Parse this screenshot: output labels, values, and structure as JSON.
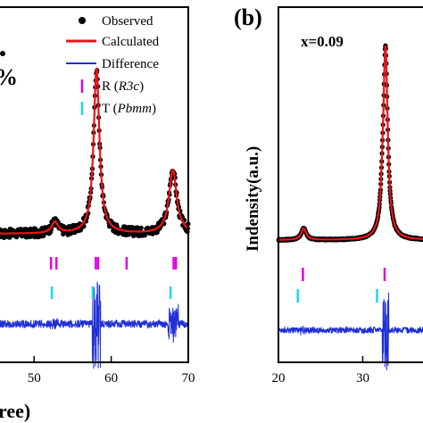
{
  "chart_data": [
    {
      "panel": "a",
      "type": "scatter",
      "title": "",
      "partial_labels": [
        "%"
      ],
      "xlabel": "ree)",
      "ylabel": "",
      "xlim": [
        45,
        70
      ],
      "xticks": [
        "50",
        "60",
        "70"
      ],
      "legend": {
        "placement": "top-right",
        "entries": [
          {
            "label": "Observed",
            "symbol": "dot",
            "color": "#000000"
          },
          {
            "label": "Calculated",
            "symbol": "line",
            "color": "#e8141a"
          },
          {
            "label": "Difference",
            "symbol": "line",
            "color": "#1f2ed6"
          },
          {
            "label_prefix": "R (",
            "label_italic": "R3c",
            "label_suffix": ")",
            "symbol": "tick",
            "color": "#e000e0"
          },
          {
            "label_prefix": "T (",
            "label_italic": "Pbmm",
            "label_suffix": ")",
            "symbol": "tick",
            "color": "#1cd6f0"
          }
        ]
      },
      "background": 0.0,
      "peaks": [
        {
          "x": 52.7,
          "height": 0.015,
          "width": 0.5
        },
        {
          "x": 58.1,
          "height": 0.22,
          "width": 0.45
        },
        {
          "x": 68.0,
          "height": 0.085,
          "width": 0.6
        }
      ],
      "r3c_ticks": [
        52.2,
        52.9,
        58.0,
        58.3,
        62.0,
        68.1,
        68.4
      ],
      "pbmm_ticks": [
        52.3,
        57.6,
        67.7
      ]
    },
    {
      "panel": "b",
      "type": "scatter",
      "label": "(b)",
      "annotation": "x=0.09",
      "xlabel": "",
      "ylabel": "Indensity(a.u.)",
      "xlim": [
        20,
        38
      ],
      "xticks": [
        "20",
        "30"
      ],
      "background": 0.0,
      "peaks": [
        {
          "x": 23.0,
          "height": 0.06,
          "width": 0.35
        },
        {
          "x": 32.7,
          "height": 1.0,
          "width": 0.32
        },
        {
          "x": 32.3,
          "height": 0.07,
          "width": 0.2
        }
      ],
      "r3c_ticks": [
        22.9,
        32.6
      ],
      "pbmm_ticks": [
        22.3,
        31.7
      ]
    }
  ]
}
